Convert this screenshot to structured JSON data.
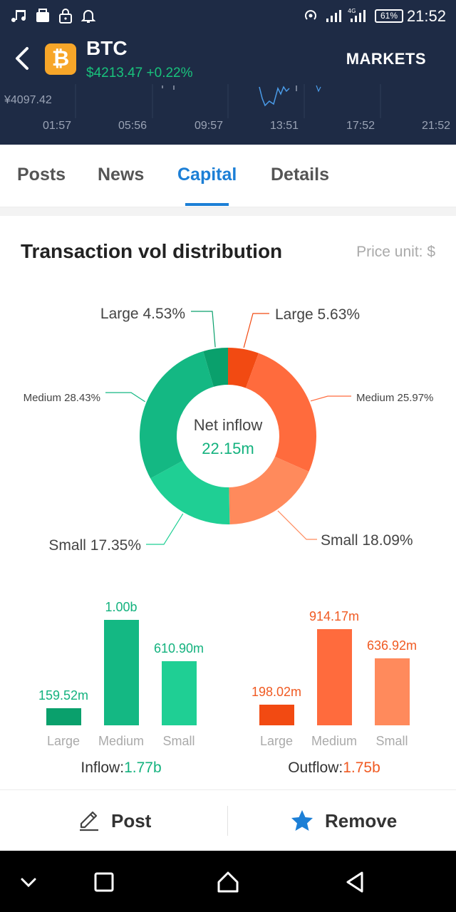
{
  "status_bar": {
    "time": "21:52",
    "battery": "61%",
    "network": "4G",
    "icons": [
      "music-icon",
      "app-icon",
      "lock-icon",
      "bell-icon",
      "hotspot-icon",
      "signal-icon",
      "signal-4g-icon",
      "battery-icon"
    ]
  },
  "header": {
    "coin": "BTC",
    "price_line": "$4213.47 +0.22%",
    "markets_label": "MARKETS",
    "price_color": "#19c27c",
    "background": "#1e2b45"
  },
  "mini_chart": {
    "price_label": "¥4097.42",
    "times": [
      "01:57",
      "05:56",
      "09:57",
      "13:51",
      "17:52",
      "21:52"
    ]
  },
  "tabs": [
    {
      "label": "Posts",
      "active": false
    },
    {
      "label": "News",
      "active": false
    },
    {
      "label": "Capital",
      "active": true
    },
    {
      "label": "Details",
      "active": false
    }
  ],
  "distribution": {
    "title": "Transaction vol distribution",
    "price_unit": "Price unit: $",
    "center_label": "Net inflow",
    "center_value": "22.15m"
  },
  "chart_data": [
    {
      "type": "pie",
      "title": "Transaction vol distribution",
      "labels": [
        "Large",
        "Medium",
        "Small",
        "Small",
        "Medium",
        "Large"
      ],
      "values": [
        5.63,
        25.97,
        18.09,
        17.35,
        28.43,
        4.53
      ],
      "label_texts": [
        "Large 5.63%",
        "Medium 25.97%",
        "Small 18.09%",
        "Small 17.35%",
        "Medium 28.43%",
        "Large 4.53%"
      ],
      "colors": [
        "#f24a12",
        "#ff6b3d",
        "#ff8a5c",
        "#1fcf94",
        "#14b883",
        "#0aa06c"
      ],
      "center_label": "Net inflow",
      "center_value": "22.15m"
    },
    {
      "type": "bar",
      "categories": [
        "Large",
        "Medium",
        "Small"
      ],
      "values": [
        159.52,
        1000.0,
        610.9
      ],
      "value_labels": [
        "159.52m",
        "1.00b",
        "610.90m"
      ],
      "unit": "m",
      "colors": [
        "#0aa06c",
        "#14b883",
        "#1fcf94"
      ],
      "total_label": "Inflow:",
      "total_value": "1.77b",
      "ylim": [
        0,
        1000
      ]
    },
    {
      "type": "bar",
      "categories": [
        "Large",
        "Medium",
        "Small"
      ],
      "values": [
        198.02,
        914.17,
        636.92
      ],
      "value_labels": [
        "198.02m",
        "914.17m",
        "636.92m"
      ],
      "unit": "m",
      "colors": [
        "#f24a12",
        "#ff6b3d",
        "#ff8a5c"
      ],
      "total_label": "Outflow:",
      "total_value": "1.75b",
      "ylim": [
        0,
        1000
      ]
    }
  ],
  "actions": {
    "post_label": "Post",
    "remove_label": "Remove",
    "post_icon": "pencil-icon",
    "remove_icon": "star-icon",
    "star_color": "#1c7fd6"
  },
  "nav": {
    "icons": [
      "chevron-down-icon",
      "recents-icon",
      "home-icon",
      "back-icon"
    ]
  }
}
